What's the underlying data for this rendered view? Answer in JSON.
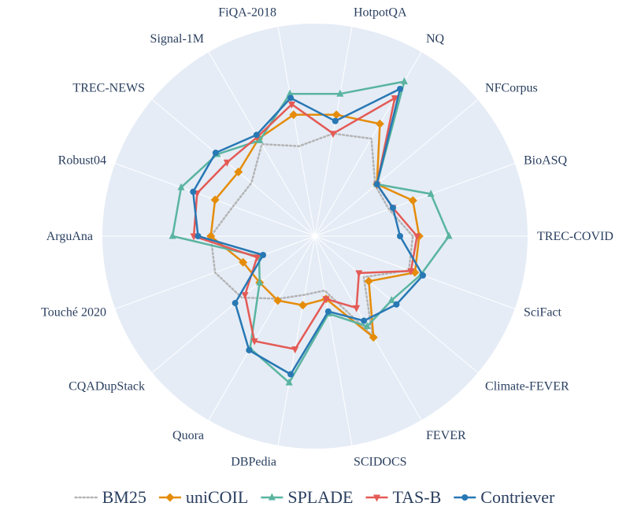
{
  "chart_data": {
    "type": "radar",
    "radial_range": [
      0,
      1
    ],
    "grid": true,
    "legend_position": "bottom",
    "colors": {
      "background": "#e5ecf6",
      "grid": "#ffffff",
      "text": "#2a3f5f"
    },
    "categories": [
      "TREC-COVID",
      "BioASQ",
      "NFCorpus",
      "NQ",
      "HotpotQA",
      "FiQA-2018",
      "Signal-1M",
      "TREC-NEWS",
      "Robust04",
      "ArguAna",
      "Touché 2020",
      "CQADupStack",
      "Quora",
      "DBPedia",
      "SCIDOCS",
      "FEVER",
      "Climate-FEVER",
      "SciFact"
    ],
    "series": [
      {
        "name": "BM25",
        "color": "#b4b4b4",
        "dash": "dot",
        "marker": "none",
        "values": [
          0.46,
          0.37,
          0.37,
          0.53,
          0.49,
          0.43,
          0.5,
          0.39,
          0.41,
          0.49,
          0.5,
          0.45,
          0.34,
          0.28,
          0.26,
          0.54,
          0.3,
          0.47
        ]
      },
      {
        "name": "uniCOIL",
        "color": "#e58c0a",
        "dash": "solid",
        "marker": "diamond",
        "values": [
          0.49,
          0.49,
          0.38,
          0.61,
          0.58,
          0.58,
          0.53,
          0.47,
          0.5,
          0.49,
          0.36,
          0.34,
          0.35,
          0.33,
          0.3,
          0.55,
          0.33,
          0.5
        ]
      },
      {
        "name": "SPLADE",
        "color": "#5ab4a0",
        "dash": "solid",
        "marker": "triangle",
        "values": [
          0.63,
          0.58,
          0.38,
          0.84,
          0.68,
          0.68,
          0.52,
          0.6,
          0.67,
          0.67,
          0.28,
          0.34,
          0.61,
          0.7,
          0.37,
          0.49,
          0.47,
          0.53
        ]
      },
      {
        "name": "TAS-B",
        "color": "#e45a55",
        "dash": "solid",
        "marker": "triangle-down",
        "values": [
          0.48,
          0.39,
          0.38,
          0.75,
          0.49,
          0.63,
          0.54,
          0.54,
          0.59,
          0.57,
          0.29,
          0.43,
          0.57,
          0.54,
          0.3,
          0.39,
          0.27,
          0.48
        ]
      },
      {
        "name": "Contriever",
        "color": "#2878b4",
        "dash": "solid",
        "marker": "circle",
        "values": [
          0.4,
          0.39,
          0.38,
          0.8,
          0.55,
          0.66,
          0.55,
          0.61,
          0.61,
          0.55,
          0.26,
          0.49,
          0.62,
          0.66,
          0.36,
          0.46,
          0.5,
          0.54
        ]
      }
    ]
  }
}
